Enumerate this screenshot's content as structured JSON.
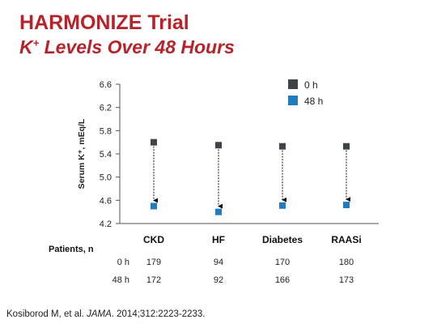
{
  "slide": {
    "title": "HARMONIZE Trial",
    "subtitle_main": "K",
    "subtitle_sup": "+",
    "subtitle_rest": " Levels Over 48 Hours"
  },
  "colors": {
    "title": "#b5242b",
    "series_0h": "#404448",
    "series_48h": "#1f7cbf",
    "axis": "#555555",
    "arrow": "#111111"
  },
  "chart_data": {
    "type": "scatter",
    "ylabel": "Serum K⁺, mEq/L",
    "ylim": [
      4.2,
      6.6
    ],
    "yticks": [
      "6.6",
      "6.2",
      "5.8",
      "5.4",
      "5.0",
      "4.6",
      "4.2"
    ],
    "categories": [
      "CKD",
      "HF",
      "Diabetes",
      "RAASi"
    ],
    "series": [
      {
        "name": "0 h",
        "values": [
          5.6,
          5.55,
          5.53,
          5.53
        ]
      },
      {
        "name": "48 h",
        "values": [
          4.5,
          4.4,
          4.51,
          4.52
        ]
      }
    ],
    "legend_position": "top-right",
    "grid": false
  },
  "patients_table": {
    "header": "Patients, n",
    "rows": [
      {
        "label": "0 h",
        "values": [
          "179",
          "94",
          "170",
          "180"
        ]
      },
      {
        "label": "48 h",
        "values": [
          "172",
          "92",
          "166",
          "173"
        ]
      }
    ]
  },
  "citation": {
    "before": "Kosiborod M, et al. ",
    "journal": "JAMA",
    "after": ". 2014;312:2223-2233."
  }
}
